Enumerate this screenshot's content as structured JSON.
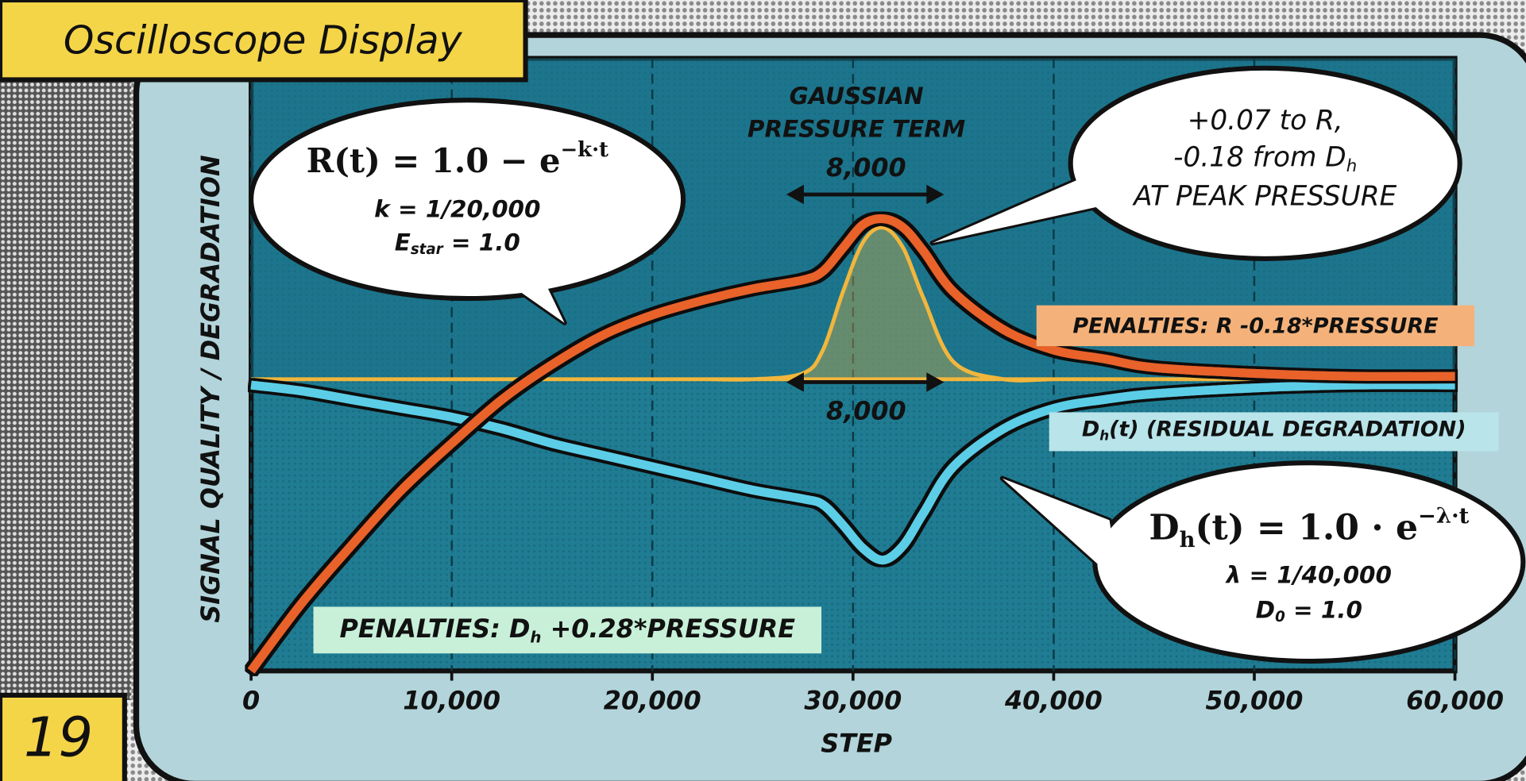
{
  "title": "Oscilloscope Display",
  "panel_number": "19",
  "chart_data": {
    "type": "line",
    "x_label": "STEP",
    "y_label": "SIGNAL QUALITY / DEGRADATION",
    "xlim": [
      0,
      60000
    ],
    "xticks": [
      0,
      {
        "value": 10000,
        "label": "10,000"
      },
      {
        "value": 20000,
        "label": "20,000"
      },
      {
        "value": 30000,
        "label": "30,000"
      },
      {
        "value": 40000,
        "label": "40,000"
      },
      {
        "value": 50000,
        "label": "50,000"
      },
      {
        "value": 60000,
        "label": "60,000"
      }
    ],
    "ylim": [
      -1,
      1.1
    ],
    "grid": true,
    "x": [
      0,
      2500,
      5000,
      7500,
      10000,
      12500,
      15000,
      17500,
      20000,
      22500,
      25000,
      27500,
      28500,
      29500,
      30500,
      31500,
      32500,
      33500,
      35000,
      37500,
      40000,
      42500,
      45000,
      50000,
      55000,
      60000
    ],
    "series": [
      {
        "color": "#e8622c",
        "values": [
          -1.0,
          -0.77,
          -0.57,
          -0.38,
          -0.22,
          -0.07,
          0.05,
          0.15,
          0.22,
          0.27,
          0.31,
          0.34,
          0.37,
          0.45,
          0.53,
          0.55,
          0.52,
          0.44,
          0.3,
          0.17,
          0.1,
          0.07,
          0.04,
          0.02,
          0.01,
          0.01
        ]
      },
      {
        "color": "#5ccde6",
        "values": [
          -0.02,
          -0.04,
          -0.07,
          -0.1,
          -0.13,
          -0.17,
          -0.22,
          -0.26,
          -0.3,
          -0.34,
          -0.38,
          -0.41,
          -0.43,
          -0.5,
          -0.58,
          -0.62,
          -0.57,
          -0.46,
          -0.3,
          -0.17,
          -0.1,
          -0.07,
          -0.05,
          -0.03,
          -0.02,
          -0.02
        ]
      },
      {
        "color": "#f2b63c",
        "fill": true,
        "values": [
          0,
          0,
          0,
          0,
          0,
          0,
          0,
          0,
          0,
          0,
          0,
          0.02,
          0.1,
          0.3,
          0.47,
          0.52,
          0.45,
          0.28,
          0.06,
          0,
          0,
          0,
          0,
          0,
          0,
          0
        ]
      }
    ],
    "annotations": {
      "pressure_title": [
        "GAUSSIAN",
        "PRESSURE TERM"
      ],
      "width_top": "8,000",
      "width_bottom": "8,000",
      "r_bubble": [
        [
          "R(t) = 1.0 − e",
          {
            "sup": "−k·t"
          }
        ],
        [
          "k = 1/20,000"
        ],
        [
          "E",
          {
            "sub": "star"
          },
          " = 1.0"
        ]
      ],
      "peak_bubble": [
        [
          "+0.07 to R,"
        ],
        [
          "-0.18 from D",
          {
            "sub": "h"
          }
        ],
        [
          "AT PEAK PRESSURE"
        ]
      ],
      "dh_bubble": [
        [
          "D",
          {
            "sub": "h"
          },
          "(t) = 1.0 · e",
          {
            "sup": "−λ·t"
          }
        ],
        [
          "λ = 1/40,000"
        ],
        [
          "D",
          {
            "sub": "0"
          },
          " = 1.0"
        ]
      ],
      "r_penalty": [
        "PENALTIES: R -0.18*PRESSURE"
      ],
      "dh_label": [
        "D",
        {
          "sub": "h"
        },
        "(t) (RESIDUAL DEGRADATION)"
      ],
      "dh_penalty": [
        "PENALTIES: D",
        {
          "sub": "h"
        },
        " +0.28*PRESSURE"
      ]
    }
  }
}
